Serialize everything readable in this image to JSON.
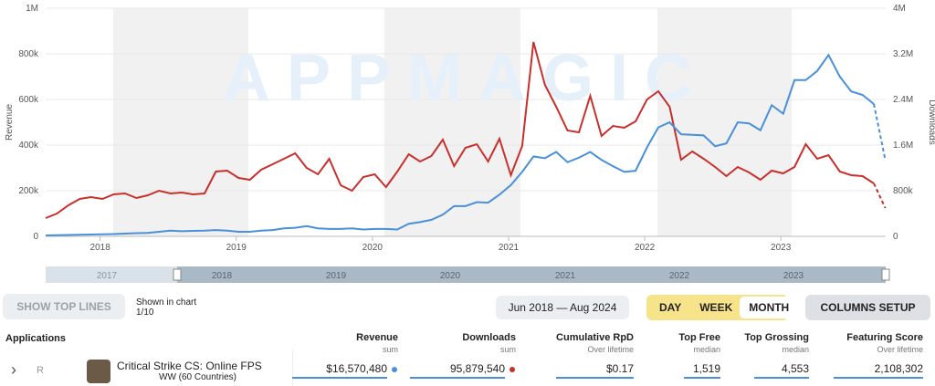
{
  "chart_data": {
    "type": "line",
    "x": [
      2017.6,
      2017.683,
      2017.767,
      2017.85,
      2017.933,
      2018.017,
      2018.1,
      2018.183,
      2018.267,
      2018.35,
      2018.433,
      2018.517,
      2018.6,
      2018.683,
      2018.767,
      2018.85,
      2018.933,
      2019.017,
      2019.1,
      2019.183,
      2019.267,
      2019.35,
      2019.433,
      2019.517,
      2019.6,
      2019.683,
      2019.767,
      2019.85,
      2019.933,
      2020.017,
      2020.1,
      2020.183,
      2020.267,
      2020.35,
      2020.433,
      2020.517,
      2020.6,
      2020.683,
      2020.767,
      2020.85,
      2020.933,
      2021.017,
      2021.1,
      2021.183,
      2021.267,
      2021.35,
      2021.433,
      2021.517,
      2021.6,
      2021.683,
      2021.767,
      2021.85,
      2021.933,
      2022.017,
      2022.1,
      2022.183,
      2022.267,
      2022.35,
      2022.433,
      2022.517,
      2022.6,
      2022.683,
      2022.767,
      2022.85,
      2022.933,
      2023.017,
      2023.1,
      2023.183,
      2023.267,
      2023.35,
      2023.433,
      2023.517,
      2023.6,
      2023.683,
      2023.767
    ],
    "xlim": [
      2017.6,
      2023.77
    ],
    "xticks": [
      2018,
      2019,
      2020,
      2021,
      2022,
      2023
    ],
    "ylim": [
      0,
      1000000
    ],
    "yticks": [
      0,
      {
        "value": 200000,
        "label": "200k"
      },
      {
        "value": 400000,
        "label": "400k"
      },
      {
        "value": 600000,
        "label": "600k"
      },
      {
        "value": 800000,
        "label": "800k"
      },
      {
        "value": 1000000,
        "label": "1M"
      }
    ],
    "y2lim": [
      0,
      4000000
    ],
    "y2ticks": [
      0,
      {
        "value": 800000,
        "label": "800k"
      },
      {
        "value": 1600000,
        "label": "1.6M"
      },
      {
        "value": 2400000,
        "label": "2.4M"
      },
      {
        "value": 3200000,
        "label": "3.2M"
      },
      {
        "value": 4000000,
        "label": "4M"
      }
    ],
    "ylabel": "Revenue",
    "y2label": "Downloads",
    "grid": true,
    "watermark": "APPMAGIC",
    "series": [
      {
        "name": "Revenue",
        "color": "#c8302c",
        "values": [
          80000,
          100000,
          136000,
          164000,
          172000,
          164000,
          184000,
          188000,
          168000,
          180000,
          200000,
          188000,
          192000,
          184000,
          188000,
          284000,
          288000,
          256000,
          248000,
          292000,
          316000,
          340000,
          364000,
          300000,
          272000,
          340000,
          224000,
          200000,
          260000,
          272000,
          216000,
          284000,
          360000,
          328000,
          352000,
          424000,
          308000,
          388000,
          404000,
          328000,
          428000,
          268000,
          396000,
          852000,
          664000,
          568000,
          464000,
          456000,
          616000,
          440000,
          484000,
          476000,
          504000,
          600000,
          636000,
          568000,
          336000,
          372000,
          340000,
          304000,
          264000,
          304000,
          280000,
          248000,
          288000,
          276000,
          304000,
          404000,
          340000,
          356000,
          284000,
          268000,
          264000,
          232000,
          124000
        ]
      },
      {
        "name": "Downloads",
        "color": "#4a90d9",
        "axis": "y2",
        "values": [
          16000,
          20000,
          24000,
          28000,
          32000,
          36000,
          40000,
          48000,
          56000,
          60000,
          80000,
          100000,
          90000,
          96000,
          100000,
          110000,
          100000,
          80000,
          80000,
          100000,
          110000,
          140000,
          150000,
          180000,
          140000,
          130000,
          130000,
          140000,
          120000,
          130000,
          130000,
          120000,
          220000,
          250000,
          290000,
          380000,
          530000,
          530000,
          600000,
          590000,
          730000,
          900000,
          1130000,
          1400000,
          1370000,
          1480000,
          1300000,
          1380000,
          1480000,
          1340000,
          1230000,
          1130000,
          1150000,
          1560000,
          1910000,
          2000000,
          1790000,
          1780000,
          1770000,
          1580000,
          1630000,
          2000000,
          1980000,
          1860000,
          2300000,
          2150000,
          2740000,
          2740000,
          2900000,
          3180000,
          2800000,
          2540000,
          2480000,
          2320000,
          1340000
        ]
      }
    ]
  },
  "navigator": {
    "labels": [
      "2017",
      "2018",
      "2019",
      "2020",
      "2021",
      "2022",
      "2023"
    ]
  },
  "toolbar": {
    "show_top_lines": "SHOW TOP LINES",
    "shown_label": "Shown in chart",
    "shown_value": "1/10",
    "date_range": "Jun 2018 — Aug 2024",
    "periods": [
      "DAY",
      "WEEK",
      "MONTH"
    ],
    "columns_setup": "COLUMNS SETUP"
  },
  "table": {
    "applications": "Applications",
    "columns": [
      {
        "sub": "sum"
      },
      {
        "sub": "sum"
      },
      {
        "title": "Cumulative RpD",
        "sub": "Over lifetime"
      },
      {
        "title": "Top Free",
        "sub": "median"
      },
      {
        "title": "Top Grossing",
        "sub": "median"
      },
      {
        "title": "Featuring Score",
        "sub": "Over lifetime"
      }
    ],
    "row": {
      "badge": "R",
      "name": "Critical Strike CS: Online FPS",
      "region": "WW (60 Countries)",
      "values": [
        "$16,570,480",
        "95,879,540",
        "$0.17",
        "1,519",
        "4,553",
        "2,108,302"
      ]
    }
  }
}
